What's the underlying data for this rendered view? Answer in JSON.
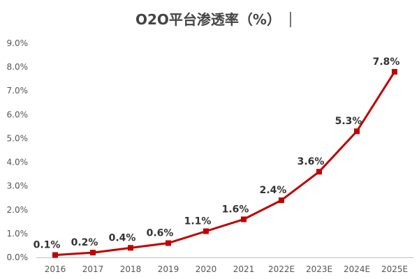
{
  "chart_data": {
    "type": "line",
    "title": "O2O平台渗透率（%）",
    "categories": [
      "2016",
      "2017",
      "2018",
      "2019",
      "2020",
      "2021",
      "2022E",
      "2023E",
      "2024E",
      "2025E"
    ],
    "values": [
      0.1,
      0.2,
      0.4,
      0.6,
      1.1,
      1.6,
      2.4,
      3.6,
      5.3,
      7.8
    ],
    "data_labels": [
      "0.1%",
      "0.2%",
      "0.4%",
      "0.6%",
      "1.1%",
      "1.6%",
      "2.4%",
      "3.6%",
      "5.3%",
      "7.8%"
    ],
    "y_ticks": [
      "0.0%",
      "1.0%",
      "2.0%",
      "3.0%",
      "4.0%",
      "5.0%",
      "6.0%",
      "7.0%",
      "8.0%",
      "9.0%"
    ],
    "ylim": [
      0,
      9
    ],
    "grid": false,
    "legend": "none",
    "line_color": "#c00000"
  }
}
